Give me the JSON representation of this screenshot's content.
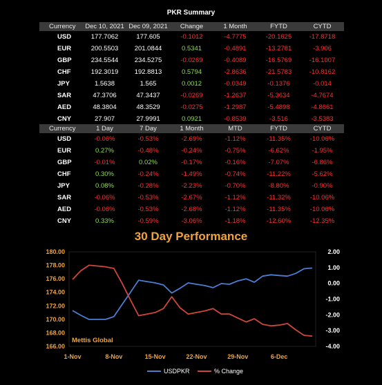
{
  "title": "PKR Summary",
  "summary": {
    "headers": [
      "Currency",
      "Dec 10, 2021",
      "Dec 09, 2021",
      "Change",
      "1 Month",
      "FYTD",
      "CYTD"
    ],
    "rows": [
      [
        "USD",
        "177.7062",
        "177.605",
        "-0.1012",
        "-4.7775",
        "-20.1625",
        "-17.8718"
      ],
      [
        "EUR",
        "200.5503",
        "201.0844",
        "0.5341",
        "-0.4891",
        "-13.2781",
        "-3.906"
      ],
      [
        "GBP",
        "234.5544",
        "234.5275",
        "-0.0269",
        "-0.4089",
        "-16.5769",
        "-16.1007"
      ],
      [
        "CHF",
        "192.3019",
        "192.8813",
        "0.5794",
        "-2.8636",
        "-21.5783",
        "-10.8162"
      ],
      [
        "JPY",
        "1.5638",
        "1.565",
        "0.0012",
        "-0.0349",
        "-0.1376",
        "-0.014"
      ],
      [
        "SAR",
        "47.3706",
        "47.3437",
        "-0.0269",
        "-1.2637",
        "-5.3634",
        "-4.7674"
      ],
      [
        "AED",
        "48.3804",
        "48.3529",
        "-0.0275",
        "-1.2987",
        "-5.4898",
        "-4.8661"
      ],
      [
        "CNY",
        "27.907",
        "27.9991",
        "0.0921",
        "-0.8539",
        "-3.516",
        "-3.5383"
      ]
    ]
  },
  "returns": {
    "headers": [
      "Currency",
      "1 Day",
      "7 Day",
      "1 Month",
      "MTD",
      "FYTD",
      "CYTD"
    ],
    "rows": [
      [
        "USD",
        "-0.06%",
        "-0.53%",
        "-2.69%",
        "-1.12%",
        "-11.35%",
        "-10.06%"
      ],
      [
        "EUR",
        "0.27%",
        "-0.48%",
        "-0.24%",
        "-0.75%",
        "-6.62%",
        "-1.95%"
      ],
      [
        "GBP",
        "-0.01%",
        "0.02%",
        "-0.17%",
        "-0.16%",
        "-7.07%",
        "-6.86%"
      ],
      [
        "CHF",
        "0.30%",
        "-0.24%",
        "-1.49%",
        "-0.74%",
        "-11.22%",
        "-5.62%"
      ],
      [
        "JPY",
        "0.08%",
        "-0.28%",
        "-2.23%",
        "-0.70%",
        "-8.80%",
        "-0.90%"
      ],
      [
        "SAR",
        "-0.06%",
        "-0.53%",
        "-2.67%",
        "-1.12%",
        "-11.32%",
        "-10.06%"
      ],
      [
        "AED",
        "-0.06%",
        "-0.53%",
        "-2.68%",
        "-1.12%",
        "-11.35%",
        "-10.06%"
      ],
      [
        "CNY",
        "0.33%",
        "-0.59%",
        "-3.06%",
        "-1.18%",
        "-12.60%",
        "-12.35%"
      ]
    ]
  },
  "chart_title": "30 Day Performance",
  "watermark": "Mettis Global",
  "colors": {
    "accent": "#f2a33a",
    "usd_line": "#4a7fd4",
    "pct_line": "#d0473a",
    "positive": "#8ddc4f",
    "negative": "#ff3030"
  },
  "chart_data": {
    "type": "line",
    "x": [
      "1-Nov",
      "2-Nov",
      "3-Nov",
      "4-Nov",
      "5-Nov",
      "8-Nov",
      "9-Nov",
      "10-Nov",
      "11-Nov",
      "12-Nov",
      "15-Nov",
      "16-Nov",
      "17-Nov",
      "18-Nov",
      "19-Nov",
      "22-Nov",
      "23-Nov",
      "24-Nov",
      "25-Nov",
      "26-Nov",
      "29-Nov",
      "30-Nov",
      "1-Dec",
      "2-Dec",
      "3-Dec",
      "6-Dec",
      "7-Dec",
      "8-Dec",
      "9-Dec",
      "10-Dec"
    ],
    "x_tick_labels": [
      "1-Nov",
      "8-Nov",
      "15-Nov",
      "22-Nov",
      "29-Nov",
      "6-Dec"
    ],
    "series": [
      {
        "name": "USDPKR",
        "axis": "left",
        "values": [
          171.3,
          170.6,
          170.0,
          170.0,
          170.0,
          170.4,
          172.2,
          174.0,
          175.8,
          175.6,
          175.4,
          175.1,
          173.9,
          174.6,
          175.4,
          175.2,
          175.0,
          174.7,
          175.3,
          175.2,
          175.7,
          176.0,
          175.5,
          176.4,
          176.6,
          176.5,
          176.4,
          176.8,
          177.5,
          177.6
        ]
      },
      {
        "name": "% Change",
        "axis": "right",
        "values": [
          0.25,
          0.8,
          1.15,
          1.1,
          1.05,
          0.95,
          0.0,
          -1.05,
          -2.05,
          -1.95,
          -1.85,
          -1.6,
          -0.85,
          -1.55,
          -1.95,
          -1.85,
          -1.75,
          -1.6,
          -1.95,
          -1.95,
          -2.2,
          -2.45,
          -2.25,
          -2.6,
          -2.7,
          -2.65,
          -2.55,
          -2.95,
          -3.3,
          -3.35
        ]
      }
    ],
    "ylim_left": [
      166.0,
      180.0
    ],
    "y_ticks_left": [
      "166.00",
      "168.00",
      "170.00",
      "172.00",
      "174.00",
      "176.00",
      "178.00",
      "180.00"
    ],
    "ylim_right": [
      -4.0,
      2.0
    ],
    "y_ticks_right": [
      "-4.00",
      "-3.00",
      "-2.00",
      "-1.00",
      "0.00",
      "1.00",
      "2.00"
    ],
    "grid": false,
    "legend_position": "bottom"
  }
}
